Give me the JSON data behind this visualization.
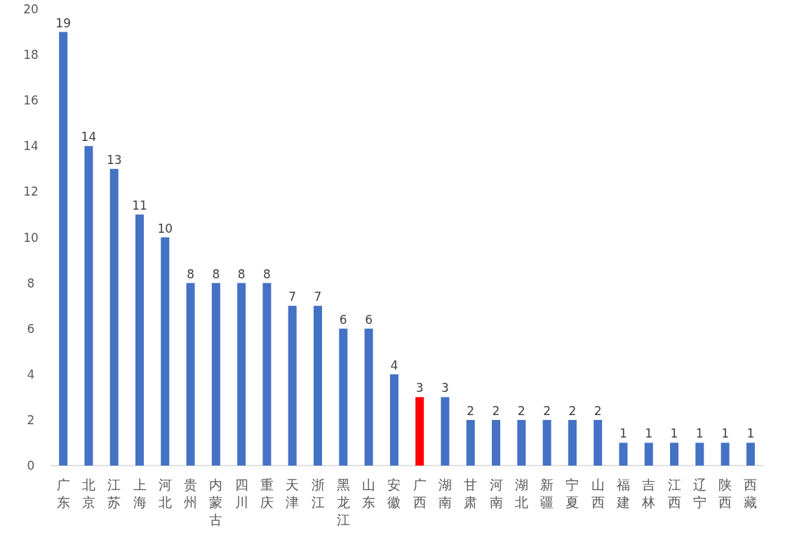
{
  "chart_data": {
    "type": "bar",
    "categories": [
      "广东",
      "北京",
      "江苏",
      "上海",
      "河北",
      "贵州",
      "内蒙古",
      "四川",
      "重庆",
      "天津",
      "浙江",
      "黑龙江",
      "山东",
      "安徽",
      "广西",
      "湖南",
      "甘肃",
      "河南",
      "湖北",
      "新疆",
      "宁夏",
      "山西",
      "福建",
      "吉林",
      "江西",
      "辽宁",
      "陕西",
      "西藏"
    ],
    "values": [
      19,
      14,
      13,
      11,
      10,
      8,
      8,
      8,
      8,
      7,
      7,
      6,
      6,
      4,
      3,
      3,
      2,
      2,
      2,
      2,
      2,
      2,
      1,
      1,
      1,
      1,
      1,
      1
    ],
    "colors": [
      "#4472c4",
      "#4472c4",
      "#4472c4",
      "#4472c4",
      "#4472c4",
      "#4472c4",
      "#4472c4",
      "#4472c4",
      "#4472c4",
      "#4472c4",
      "#4472c4",
      "#4472c4",
      "#4472c4",
      "#4472c4",
      "#ff0000",
      "#4472c4",
      "#4472c4",
      "#4472c4",
      "#4472c4",
      "#4472c4",
      "#4472c4",
      "#4472c4",
      "#4472c4",
      "#4472c4",
      "#4472c4",
      "#4472c4",
      "#4472c4",
      "#4472c4"
    ],
    "ylim": [
      0,
      20
    ],
    "yticks": [
      0,
      2,
      4,
      6,
      8,
      10,
      12,
      14,
      16,
      18,
      20
    ],
    "data_labels": true
  }
}
